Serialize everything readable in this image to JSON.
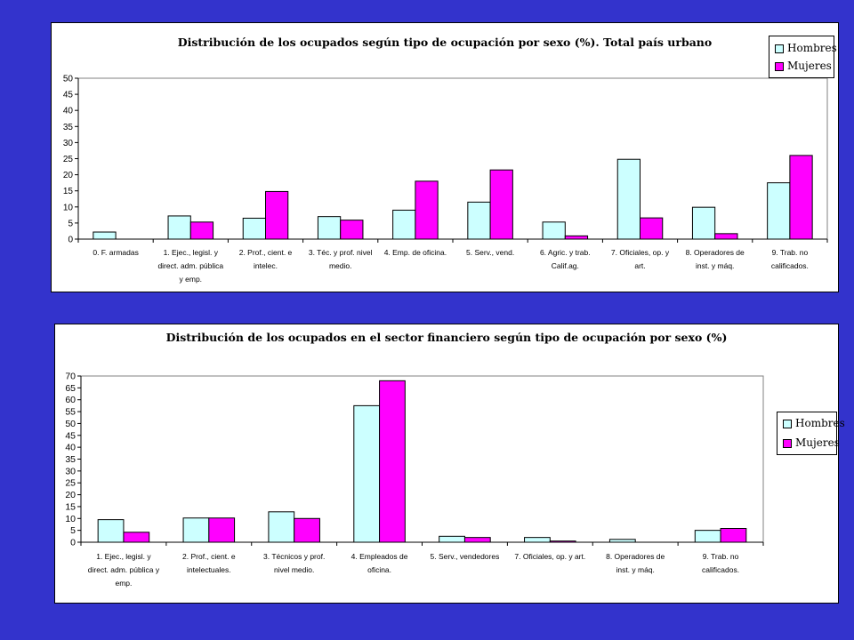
{
  "colors": {
    "hombres": "#ccffff",
    "mujeres": "#ff00ff",
    "background": "#3333cc"
  },
  "chart_data": [
    {
      "type": "bar",
      "title": "Distribución de los ocupados según tipo de ocupación por sexo (%). Total país urbano",
      "ylim": [
        0,
        50
      ],
      "yticks": [
        0,
        5,
        10,
        15,
        20,
        25,
        30,
        35,
        40,
        45,
        50
      ],
      "grid": false,
      "legend_position": "top-right",
      "categories": [
        [
          "0. F. armadas"
        ],
        [
          "1. Ejec., legisl. y",
          "direct. adm. pública",
          "y emp."
        ],
        [
          "2. Prof., cient. e",
          "intelec."
        ],
        [
          "3. Téc. y prof. nivel",
          "medio."
        ],
        [
          "4. Emp. de oficina."
        ],
        [
          "5. Serv., vend."
        ],
        [
          "6. Agric. y trab.",
          "Calif.ag."
        ],
        [
          "7. Oficiales, op. y",
          "art."
        ],
        [
          "8. Operadores de",
          "inst. y máq."
        ],
        [
          "9. Trab. no",
          "calificados."
        ]
      ],
      "series": [
        {
          "name": "Hombres",
          "values": [
            2.2,
            7.2,
            6.5,
            7.0,
            9.0,
            11.5,
            5.3,
            24.8,
            9.9,
            17.5
          ]
        },
        {
          "name": "Mujeres",
          "values": [
            0,
            5.3,
            14.8,
            5.9,
            18.0,
            21.5,
            1.0,
            6.6,
            1.7,
            26.0
          ]
        }
      ]
    },
    {
      "type": "bar",
      "title": "Distribución de los ocupados en el sector financiero según tipo de ocupación por sexo (%)",
      "ylim": [
        0,
        70
      ],
      "yticks": [
        0,
        5,
        10,
        15,
        20,
        25,
        30,
        35,
        40,
        45,
        50,
        55,
        60,
        65,
        70
      ],
      "grid": false,
      "legend_position": "right",
      "categories": [
        [
          "1. Ejec., legisl. y",
          "direct. adm. pública y",
          "emp."
        ],
        [
          "2. Prof., cient. e",
          "intelectuales."
        ],
        [
          "3. Técnicos y prof.",
          "nivel medio."
        ],
        [
          "4. Empleados de",
          "oficina."
        ],
        [
          "5. Serv., vendedores"
        ],
        [
          "7. Oficiales, op. y art."
        ],
        [
          "8. Operadores de",
          "inst. y máq."
        ],
        [
          "9. Trab. no",
          "calificados."
        ]
      ],
      "series": [
        {
          "name": "Hombres",
          "values": [
            9.5,
            10.2,
            12.8,
            57.5,
            2.5,
            2.0,
            1.2,
            5.0
          ]
        },
        {
          "name": "Mujeres",
          "values": [
            4.2,
            10.2,
            10.0,
            68.0,
            2.0,
            0.5,
            0,
            5.8
          ]
        }
      ]
    }
  ]
}
